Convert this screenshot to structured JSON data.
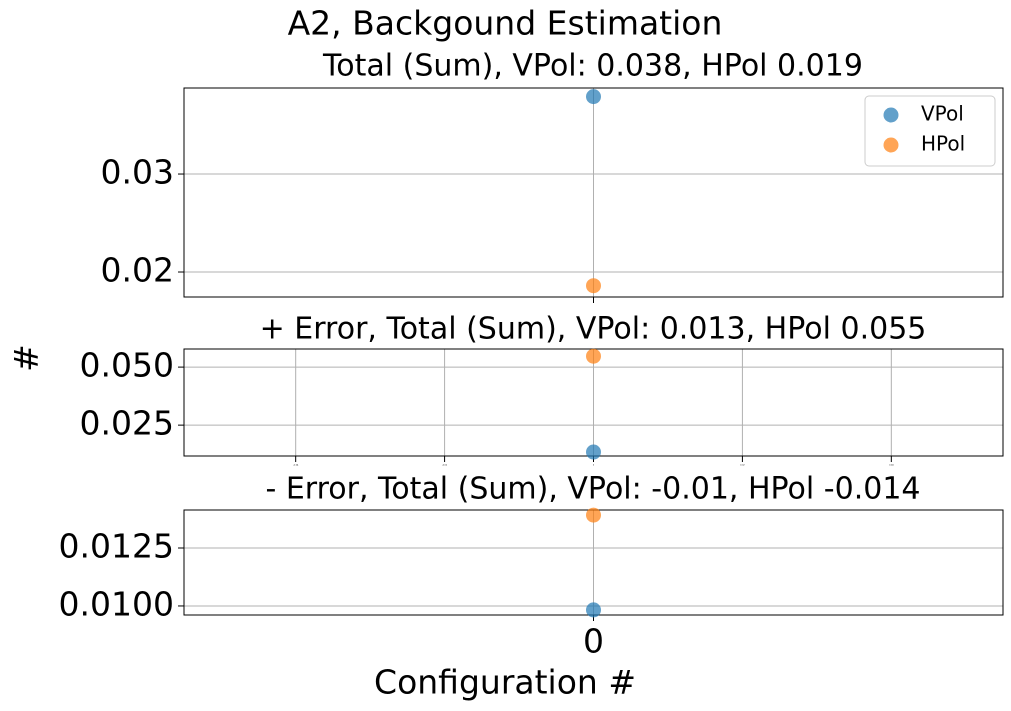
{
  "figure": {
    "title": "A2, Backgound Estimation",
    "x_label": "Configuration #",
    "y_label": "#"
  },
  "chart_data": [
    {
      "type": "scatter",
      "title": "Total (Sum), VPol: 0.038, HPol 0.019",
      "x": [
        0
      ],
      "series": [
        {
          "name": "VPol",
          "color": "#1f77b4",
          "values": [
            0.0379
          ]
        },
        {
          "name": "HPol",
          "color": "#ff7f0e",
          "values": [
            0.0186
          ]
        }
      ],
      "xlim": [
        -0.055,
        0.055
      ],
      "xticks": [
        0
      ],
      "ylim": [
        0.01745,
        0.03878
      ],
      "yticks": [
        0.02,
        0.03
      ],
      "grid": true,
      "legend": "upper right"
    },
    {
      "type": "scatter",
      "title": "+ Error, Total (Sum), VPol: 0.013, HPol 0.055",
      "x": [
        0
      ],
      "series": [
        {
          "name": "VPol",
          "color": "#1f77b4",
          "values": [
            0.0134
          ]
        },
        {
          "name": "HPol",
          "color": "#ff7f0e",
          "values": [
            0.0547
          ]
        }
      ],
      "xlim": [
        -0.055,
        0.055
      ],
      "xticks": [
        -0.04,
        -0.02,
        0,
        0.02,
        0.04
      ],
      "ylim": [
        0.0117,
        0.0578
      ],
      "yticks": [
        {
          "value": 0.025,
          "label": "0.025"
        },
        {
          "value": 0.05,
          "label": "0.050"
        }
      ],
      "grid": true
    },
    {
      "type": "scatter",
      "title": "- Error, Total (Sum), VPol: -0.01, HPol -0.014",
      "x": [
        0
      ],
      "series": [
        {
          "name": "VPol",
          "color": "#1f77b4",
          "values": [
            0.00983
          ]
        },
        {
          "name": "HPol",
          "color": "#ff7f0e",
          "values": [
            0.01392
          ]
        }
      ],
      "xlim": [
        -0.055,
        0.055
      ],
      "xticks": [
        0
      ],
      "ylim": [
        0.00961,
        0.01414
      ],
      "yticks": [
        {
          "value": 0.01,
          "label": "0.0100"
        },
        0.0125
      ],
      "grid": true
    }
  ]
}
